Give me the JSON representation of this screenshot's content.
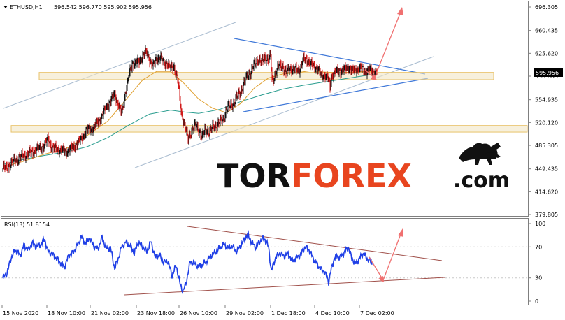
{
  "chart_data": [
    {
      "type": "candlestick",
      "symbol_label": "ETHUSD,H1",
      "ohlc_label": "596.542 596.770 595.902 595.956",
      "current_price": "595.956",
      "y_ticks": [
        "696.305",
        "660.435",
        "625.620",
        "590.805",
        "554.935",
        "520.120",
        "485.305",
        "449.435",
        "414.620",
        "379.805"
      ],
      "ylim": [
        379.805,
        696.305
      ],
      "x_ticks": [
        "15 Nov 2020",
        "18 Nov 10:00",
        "21 Nov 02:00",
        "23 Nov 18:00",
        "26 Nov 10:00",
        "29 Nov 02:00",
        "1 Dec 18:00",
        "4 Dec 10:00",
        "7 Dec 02:00"
      ],
      "close_path": [
        [
          0,
          451
        ],
        [
          5,
          450
        ],
        [
          12,
          458
        ],
        [
          20,
          464
        ],
        [
          30,
          470
        ],
        [
          40,
          474
        ],
        [
          50,
          480
        ],
        [
          60,
          486
        ],
        [
          65,
          496
        ],
        [
          70,
          481
        ],
        [
          80,
          479
        ],
        [
          90,
          476
        ],
        [
          100,
          482
        ],
        [
          110,
          492
        ],
        [
          120,
          508
        ],
        [
          130,
          512
        ],
        [
          140,
          527
        ],
        [
          150,
          547
        ],
        [
          160,
          563
        ],
        [
          165,
          548
        ],
        [
          170,
          533
        ],
        [
          175,
          565
        ],
        [
          180,
          590
        ],
        [
          185,
          610
        ],
        [
          195,
          612
        ],
        [
          200,
          623
        ],
        [
          205,
          627
        ],
        [
          210,
          617
        ],
        [
          215,
          606
        ],
        [
          220,
          617
        ],
        [
          225,
          621
        ],
        [
          230,
          609
        ],
        [
          235,
          612
        ],
        [
          240,
          602
        ],
        [
          245,
          605
        ],
        [
          250,
          586
        ],
        [
          255,
          536
        ],
        [
          260,
          517
        ],
        [
          265,
          493
        ],
        [
          270,
          509
        ],
        [
          275,
          515
        ],
        [
          280,
          509
        ],
        [
          285,
          499
        ],
        [
          290,
          509
        ],
        [
          295,
          506
        ],
        [
          300,
          512
        ],
        [
          305,
          516
        ],
        [
          315,
          524
        ],
        [
          320,
          541
        ],
        [
          330,
          550
        ],
        [
          340,
          568
        ],
        [
          345,
          579
        ],
        [
          350,
          593
        ],
        [
          355,
          597
        ],
        [
          360,
          609
        ],
        [
          365,
          617
        ],
        [
          370,
          611
        ],
        [
          375,
          620
        ],
        [
          380,
          615
        ],
        [
          383,
          622
        ],
        [
          385,
          583
        ],
        [
          390,
          596
        ],
        [
          395,
          607
        ],
        [
          400,
          607
        ],
        [
          405,
          594
        ],
        [
          410,
          604
        ],
        [
          415,
          600
        ],
        [
          420,
          601
        ],
        [
          425,
          602
        ],
        [
          430,
          616
        ],
        [
          435,
          617
        ],
        [
          440,
          608
        ],
        [
          445,
          606
        ],
        [
          450,
          603
        ],
        [
          455,
          591
        ],
        [
          460,
          593
        ],
        [
          465,
          587
        ],
        [
          468,
          574
        ],
        [
          470,
          591
        ],
        [
          475,
          597
        ],
        [
          480,
          598
        ],
        [
          485,
          600
        ],
        [
          490,
          601
        ],
        [
          495,
          605
        ],
        [
          500,
          598
        ],
        [
          505,
          601
        ],
        [
          510,
          603
        ],
        [
          515,
          601
        ],
        [
          520,
          598
        ],
        [
          525,
          600
        ],
        [
          530,
          598
        ],
        [
          535,
          596
        ]
      ],
      "ma_slow": [
        [
          0,
          456
        ],
        [
          30,
          464
        ],
        [
          60,
          470
        ],
        [
          90,
          475
        ],
        [
          120,
          483
        ],
        [
          150,
          497
        ],
        [
          180,
          516
        ],
        [
          210,
          533
        ],
        [
          240,
          539
        ],
        [
          260,
          536
        ],
        [
          280,
          534
        ],
        [
          310,
          540
        ],
        [
          340,
          552
        ],
        [
          370,
          562
        ],
        [
          400,
          571
        ],
        [
          430,
          577
        ],
        [
          460,
          582
        ],
        [
          490,
          587
        ],
        [
          520,
          592
        ],
        [
          535,
          594
        ]
      ],
      "ma_fast": [
        [
          0,
          452
        ],
        [
          30,
          461
        ],
        [
          60,
          472
        ],
        [
          90,
          480
        ],
        [
          120,
          500
        ],
        [
          150,
          522
        ],
        [
          180,
          560
        ],
        [
          200,
          585
        ],
        [
          220,
          598
        ],
        [
          240,
          598
        ],
        [
          260,
          579
        ],
        [
          280,
          556
        ],
        [
          300,
          542
        ],
        [
          320,
          535
        ],
        [
          340,
          549
        ],
        [
          360,
          573
        ],
        [
          380,
          588
        ],
        [
          400,
          594
        ],
        [
          420,
          596
        ],
        [
          440,
          599
        ],
        [
          460,
          597
        ],
        [
          480,
          596
        ],
        [
          500,
          597
        ],
        [
          520,
          598
        ],
        [
          535,
          597
        ]
      ],
      "resistance_zones": [
        [
          585.5,
          596.5
        ],
        [
          505.5,
          515.5
        ]
      ],
      "forecast_target": 696.305
    },
    {
      "type": "line",
      "label": "RSI(13) 51.8154",
      "y_ticks": [
        "100",
        "70",
        "30",
        "0"
      ],
      "ylim": [
        0,
        100
      ],
      "series": [
        {
          "values": [
            [
              0,
              30
            ],
            [
              6,
              36
            ],
            [
              12,
              56
            ],
            [
              18,
              66
            ],
            [
              25,
              59
            ],
            [
              30,
              72
            ],
            [
              37,
              66
            ],
            [
              42,
              75
            ],
            [
              48,
              70
            ],
            [
              54,
              73
            ],
            [
              60,
              80
            ],
            [
              64,
              65
            ],
            [
              70,
              61
            ],
            [
              76,
              56
            ],
            [
              82,
              50
            ],
            [
              88,
              44
            ],
            [
              95,
              60
            ],
            [
              100,
              62
            ],
            [
              108,
              74
            ],
            [
              112,
              83
            ],
            [
              118,
              75
            ],
            [
              124,
              81
            ],
            [
              130,
              71
            ],
            [
              136,
              67
            ],
            [
              142,
              82
            ],
            [
              148,
              68
            ],
            [
              154,
              69
            ],
            [
              160,
              42
            ],
            [
              165,
              55
            ],
            [
              170,
              70
            ],
            [
              176,
              76
            ],
            [
              182,
              72
            ],
            [
              188,
              62
            ],
            [
              194,
              76
            ],
            [
              200,
              70
            ],
            [
              206,
              64
            ],
            [
              212,
              77
            ],
            [
              218,
              56
            ],
            [
              224,
              59
            ],
            [
              230,
              50
            ],
            [
              236,
              52
            ],
            [
              242,
              33
            ],
            [
              248,
              46
            ],
            [
              254,
              20
            ],
            [
              258,
              13
            ],
            [
              262,
              23
            ],
            [
              268,
              51
            ],
            [
              274,
              49
            ],
            [
              280,
              44
            ],
            [
              286,
              47
            ],
            [
              292,
              52
            ],
            [
              298,
              59
            ],
            [
              304,
              63
            ],
            [
              310,
              68
            ],
            [
              316,
              73
            ],
            [
              322,
              69
            ],
            [
              328,
              71
            ],
            [
              334,
              64
            ],
            [
              340,
              71
            ],
            [
              346,
              80
            ],
            [
              350,
              86
            ],
            [
              356,
              76
            ],
            [
              362,
              69
            ],
            [
              368,
              78
            ],
            [
              374,
              81
            ],
            [
              380,
              70
            ],
            [
              384,
              39
            ],
            [
              390,
              56
            ],
            [
              396,
              62
            ],
            [
              402,
              58
            ],
            [
              408,
              61
            ],
            [
              414,
              52
            ],
            [
              420,
              56
            ],
            [
              426,
              60
            ],
            [
              432,
              70
            ],
            [
              438,
              66
            ],
            [
              444,
              55
            ],
            [
              450,
              47
            ],
            [
              456,
              40
            ],
            [
              460,
              38
            ],
            [
              464,
              30
            ],
            [
              466,
              25
            ],
            [
              470,
              42
            ],
            [
              474,
              55
            ],
            [
              478,
              59
            ],
            [
              482,
              56
            ],
            [
              488,
              62
            ],
            [
              494,
              70
            ],
            [
              498,
              58
            ],
            [
              504,
              48
            ],
            [
              510,
              55
            ],
            [
              516,
              62
            ],
            [
              520,
              55
            ],
            [
              525,
              53
            ],
            [
              528,
              48
            ]
          ]
        }
      ]
    }
  ]
}
